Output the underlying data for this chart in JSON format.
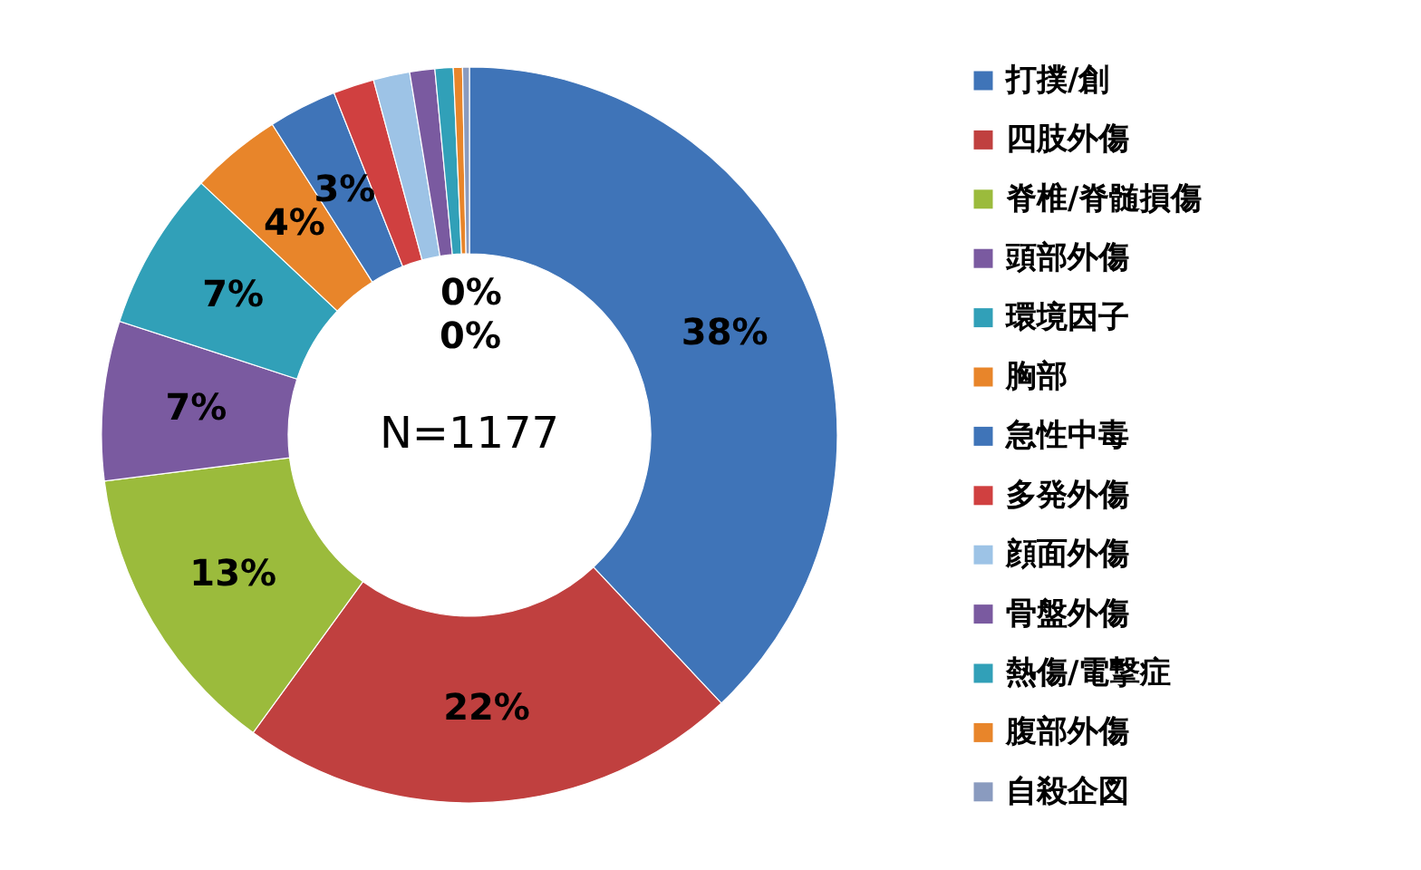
{
  "chart_data": {
    "type": "donut",
    "categories": [
      "打撲/創",
      "四肢外傷",
      "脊椎/脊髄損傷",
      "頭部外傷",
      "環境因子",
      "胸部",
      "急性中毒",
      "多発外傷",
      "顔面外傷",
      "骨盤外傷",
      "熱傷/電撃症",
      "腹部外傷",
      "自殺企図"
    ],
    "values": [
      38,
      22,
      13,
      7,
      7,
      4,
      3,
      1.8,
      1.6,
      1.1,
      0.8,
      0.4,
      0.3
    ],
    "colors": [
      "#3f74b8",
      "#c0403f",
      "#9bbb3c",
      "#7a5aa0",
      "#31a0b8",
      "#e8852a",
      "#3f74b8",
      "#d04040",
      "#9dc3e6",
      "#7a5aa0",
      "#31a0b8",
      "#e8852a",
      "#8a9bbf"
    ],
    "value_labels": [
      "38%",
      "22%",
      "13%",
      "7%",
      "7%",
      "4%",
      "3%",
      null,
      null,
      null,
      null,
      "0%",
      "0%"
    ],
    "annotations": [
      "N=1177"
    ],
    "legend": "right"
  }
}
